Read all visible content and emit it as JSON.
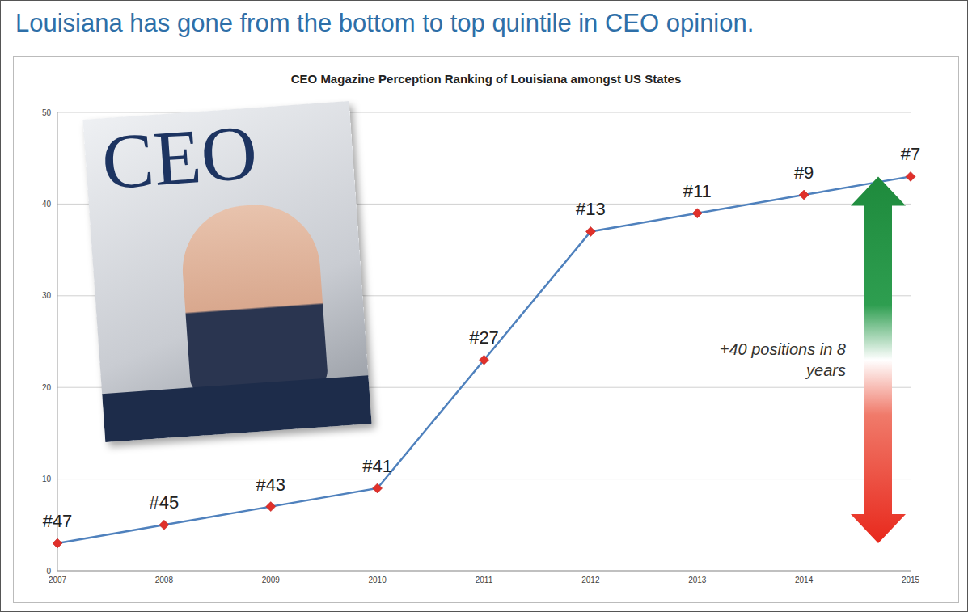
{
  "chart_data": {
    "type": "line",
    "title": "Louisiana has gone from the bottom to top quintile in CEO opinion.",
    "subtitle": "CEO Magazine Perception Ranking of Louisiana amongst US States",
    "categories": [
      "2007",
      "2008",
      "2009",
      "2010",
      "2011",
      "2012",
      "2013",
      "2014",
      "2015"
    ],
    "values": [
      3,
      5,
      7,
      9,
      23,
      37,
      39,
      41,
      43
    ],
    "point_labels": [
      "#47",
      "#45",
      "#43",
      "#41",
      "#27",
      "#13",
      "#11",
      "#9",
      "#7"
    ],
    "color": "#4f81bd",
    "marker": "diamond",
    "ylim": [
      0,
      50
    ],
    "yticks": [
      0,
      10,
      20,
      30,
      40,
      50
    ],
    "grid": true,
    "annotations": [
      "+40 positions in 8 years",
      "CEO"
    ]
  }
}
